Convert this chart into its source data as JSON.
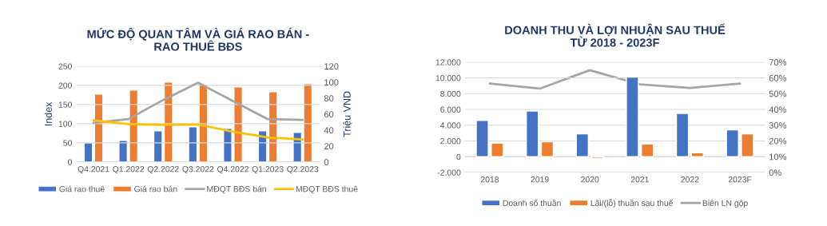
{
  "chart_data": [
    {
      "type": "bar",
      "title": "MỨC ĐỘ QUAN TÂM VÀ GIÁ RAO BÁN -\nRAO THUÊ BĐS",
      "ylabel": "Index",
      "y2label": "Triệu VND",
      "categories": [
        "Q4.2021",
        "Q1.2022",
        "Q2.2022",
        "Q3.2022",
        "Q4.2022",
        "Q1.2023",
        "Q2.2023"
      ],
      "series": [
        {
          "name": "Giá rao thuê",
          "axis": "y2",
          "color": "#4472c4",
          "values": [
            24,
            27,
            39,
            44,
            42,
            39,
            37
          ]
        },
        {
          "name": "Giá rao bán",
          "axis": "y2",
          "color": "#ed7d31",
          "values": [
            85,
            90,
            100,
            97,
            94,
            88,
            98
          ]
        },
        {
          "name": "MĐQT BĐS bán",
          "type": "line",
          "color": "#a5a5a5",
          "values": [
            102,
            112,
            162,
            207,
            159,
            112,
            110
          ]
        },
        {
          "name": "MĐQT BĐS thuê",
          "type": "line",
          "color": "#ffc000",
          "values": [
            109,
            99,
            97,
            98,
            79,
            64,
            59
          ]
        }
      ],
      "ylim": [
        0,
        250
      ],
      "yticks": [
        0,
        50,
        100,
        150,
        200,
        250
      ],
      "y2lim": [
        0,
        120
      ],
      "y2ticks": [
        0,
        20,
        40,
        60,
        80,
        100,
        120
      ],
      "grid": "y",
      "legend": "bottom"
    },
    {
      "type": "bar",
      "title": "DOANH THU VÀ LỢI NHUẬN SAU THUẾ\nTỪ 2018 - 2023F",
      "categories": [
        "2018",
        "2019",
        "2020",
        "2021",
        "2022",
        "2023F"
      ],
      "series": [
        {
          "name": "Doanh số thuần",
          "color": "#4472c4",
          "values": [
            4600,
            5800,
            2900,
            10100,
            5500,
            3400
          ]
        },
        {
          "name": "Lãi/(lỗ) thuần sau thuế",
          "color": "#ed7d31",
          "values": [
            1700,
            1900,
            -200,
            1600,
            500,
            2900
          ]
        },
        {
          "name": "Biên LN gộp",
          "type": "line",
          "axis": "y2",
          "color": "#a5a5a5",
          "values": [
            56.4,
            53.2,
            64.9,
            55.9,
            53.6,
            56.4
          ]
        }
      ],
      "ylim": [
        -2000,
        12000
      ],
      "yticks": [
        {
          "value": -2000,
          "label": "-2.000"
        },
        0,
        {
          "value": 2000,
          "label": "2.000"
        },
        {
          "value": 4000,
          "label": "4.000"
        },
        {
          "value": 6000,
          "label": "6.000"
        },
        {
          "value": 8000,
          "label": "8.000"
        },
        {
          "value": 10000,
          "label": "10.000"
        },
        {
          "value": 12000,
          "label": "12.000"
        }
      ],
      "y2lim": [
        0,
        70
      ],
      "y2ticks": [
        {
          "value": 0,
          "label": "0%"
        },
        {
          "value": 10,
          "label": "10%"
        },
        {
          "value": 20,
          "label": "20%"
        },
        {
          "value": 30,
          "label": "30%"
        },
        {
          "value": 40,
          "label": "40%"
        },
        {
          "value": 50,
          "label": "50%"
        },
        {
          "value": 60,
          "label": "60%"
        },
        {
          "value": 70,
          "label": "70%"
        }
      ],
      "grid": "y",
      "legend": "bottom"
    }
  ]
}
